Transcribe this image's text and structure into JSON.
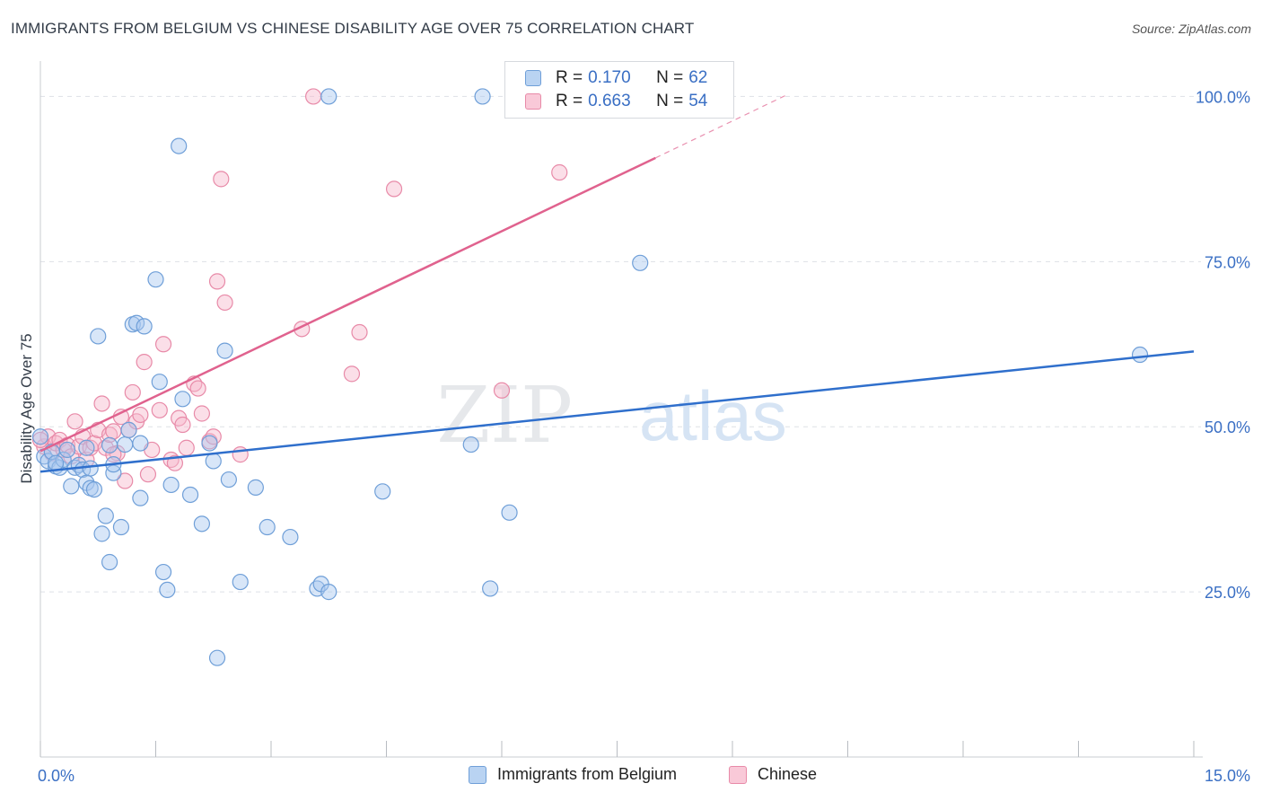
{
  "title": "IMMIGRANTS FROM BELGIUM VS CHINESE DISABILITY AGE OVER 75 CORRELATION CHART",
  "source": "Source: ZipAtlas.com",
  "watermark": {
    "zip": "ZIP",
    "atlas": "atlas"
  },
  "legend_stats": [
    {
      "r_label": "R =",
      "r_value": "0.170",
      "n_label": "N =",
      "n_value": "62"
    },
    {
      "r_label": "R =",
      "r_value": "0.663",
      "n_label": "N =",
      "n_value": "54"
    }
  ],
  "colors": {
    "blue_fill": "#a8c8ef",
    "blue_stroke": "#6f9fd8",
    "blue_line": "#2f6fcc",
    "pink_fill": "#f6b8cc",
    "pink_stroke": "#e88aa8",
    "pink_line": "#e0628e",
    "tick_label": "#3a6fc4",
    "grid": "#dde1e6"
  },
  "chart_data": {
    "type": "scatter",
    "title": "IMMIGRANTS FROM BELGIUM VS CHINESE DISABILITY AGE OVER 75 CORRELATION CHART",
    "xlabel": "",
    "ylabel": "Disability Age Over 75",
    "xlim": [
      0,
      15
    ],
    "ylim": [
      0,
      104
    ],
    "x_tick_labels": [
      "0.0%",
      "15.0%"
    ],
    "y_ticks": [
      25,
      50,
      75,
      100
    ],
    "y_tick_labels": [
      "25.0%",
      "50.0%",
      "75.0%",
      "100.0%"
    ],
    "grid": true,
    "legend_placement": "top-center",
    "series": [
      {
        "name": "Immigrants from Belgium",
        "trend": {
          "x": [
            0,
            15
          ],
          "y": [
            43.2,
            61.4
          ]
        },
        "points": [
          [
            0.05,
            45.5
          ],
          [
            0.1,
            44.8
          ],
          [
            0.15,
            46.2
          ],
          [
            0.2,
            44.0
          ],
          [
            0.25,
            43.8
          ],
          [
            0.3,
            45.0
          ],
          [
            0.35,
            46.5
          ],
          [
            0.4,
            41.0
          ],
          [
            0.45,
            43.8
          ],
          [
            0.5,
            44.2
          ],
          [
            0.55,
            43.5
          ],
          [
            0.6,
            46.8
          ],
          [
            0.65,
            43.7
          ],
          [
            0.6,
            41.5
          ],
          [
            0.65,
            40.7
          ],
          [
            0.7,
            40.5
          ],
          [
            0.75,
            63.7
          ],
          [
            0.8,
            33.8
          ],
          [
            0.85,
            36.5
          ],
          [
            0.9,
            47.2
          ],
          [
            0.95,
            43.0
          ],
          [
            0.9,
            29.5
          ],
          [
            0.95,
            44.3
          ],
          [
            1.05,
            34.8
          ],
          [
            1.1,
            47.3
          ],
          [
            1.15,
            49.5
          ],
          [
            1.2,
            65.5
          ],
          [
            1.25,
            65.7
          ],
          [
            1.3,
            39.2
          ],
          [
            1.3,
            47.5
          ],
          [
            1.35,
            65.2
          ],
          [
            1.5,
            72.3
          ],
          [
            1.55,
            56.8
          ],
          [
            1.6,
            28.0
          ],
          [
            1.65,
            25.3
          ],
          [
            1.7,
            41.2
          ],
          [
            1.8,
            92.5
          ],
          [
            1.85,
            54.2
          ],
          [
            1.95,
            39.7
          ],
          [
            2.1,
            35.3
          ],
          [
            2.2,
            47.5
          ],
          [
            2.25,
            44.8
          ],
          [
            2.3,
            15.0
          ],
          [
            2.4,
            61.5
          ],
          [
            2.45,
            42.0
          ],
          [
            2.6,
            26.5
          ],
          [
            2.8,
            40.8
          ],
          [
            2.95,
            34.8
          ],
          [
            3.25,
            33.3
          ],
          [
            3.6,
            25.5
          ],
          [
            3.65,
            26.2
          ],
          [
            3.75,
            25.0
          ],
          [
            3.75,
            100.0
          ],
          [
            4.45,
            40.2
          ],
          [
            5.6,
            47.3
          ],
          [
            5.75,
            100.0
          ],
          [
            5.85,
            25.5
          ],
          [
            6.1,
            37.0
          ],
          [
            7.8,
            74.8
          ],
          [
            14.3,
            60.9
          ],
          [
            0.0,
            48.5
          ],
          [
            0.2,
            44.5
          ]
        ]
      },
      {
        "name": "Chinese",
        "trend": {
          "x": [
            0,
            8.0
          ],
          "y": [
            46.3,
            90.7
          ]
        },
        "trend_dashed": {
          "x": [
            8.0,
            9.7
          ],
          "y": [
            90.7,
            100.2
          ]
        },
        "points": [
          [
            0.05,
            47.0
          ],
          [
            0.1,
            48.5
          ],
          [
            0.15,
            46.0
          ],
          [
            0.2,
            47.5
          ],
          [
            0.25,
            48.0
          ],
          [
            0.3,
            46.5
          ],
          [
            0.35,
            47.2
          ],
          [
            0.4,
            45.5
          ],
          [
            0.45,
            50.8
          ],
          [
            0.5,
            47.0
          ],
          [
            0.55,
            48.5
          ],
          [
            0.6,
            45.0
          ],
          [
            0.65,
            46.8
          ],
          [
            0.7,
            47.5
          ],
          [
            0.75,
            49.5
          ],
          [
            0.8,
            53.5
          ],
          [
            0.85,
            46.8
          ],
          [
            0.9,
            48.8
          ],
          [
            0.95,
            49.3
          ],
          [
            1.0,
            46.0
          ],
          [
            1.05,
            51.5
          ],
          [
            1.1,
            41.8
          ],
          [
            1.15,
            49.5
          ],
          [
            1.2,
            55.2
          ],
          [
            1.25,
            50.8
          ],
          [
            1.3,
            51.8
          ],
          [
            1.35,
            59.8
          ],
          [
            1.4,
            42.8
          ],
          [
            1.45,
            46.5
          ],
          [
            1.55,
            52.5
          ],
          [
            1.6,
            62.5
          ],
          [
            1.7,
            45.0
          ],
          [
            1.75,
            44.5
          ],
          [
            1.8,
            51.3
          ],
          [
            1.85,
            50.3
          ],
          [
            1.9,
            46.8
          ],
          [
            2.0,
            56.5
          ],
          [
            2.05,
            55.8
          ],
          [
            2.1,
            52.0
          ],
          [
            2.2,
            47.8
          ],
          [
            2.25,
            48.5
          ],
          [
            2.3,
            72.0
          ],
          [
            2.35,
            87.5
          ],
          [
            2.4,
            68.8
          ],
          [
            2.6,
            45.8
          ],
          [
            3.4,
            64.8
          ],
          [
            3.55,
            100.0
          ],
          [
            4.05,
            58.0
          ],
          [
            4.15,
            64.3
          ],
          [
            4.6,
            86.0
          ],
          [
            6.0,
            55.5
          ],
          [
            6.75,
            88.5
          ],
          [
            0.95,
            45.8
          ],
          [
            0.0,
            48.0
          ]
        ]
      }
    ]
  }
}
